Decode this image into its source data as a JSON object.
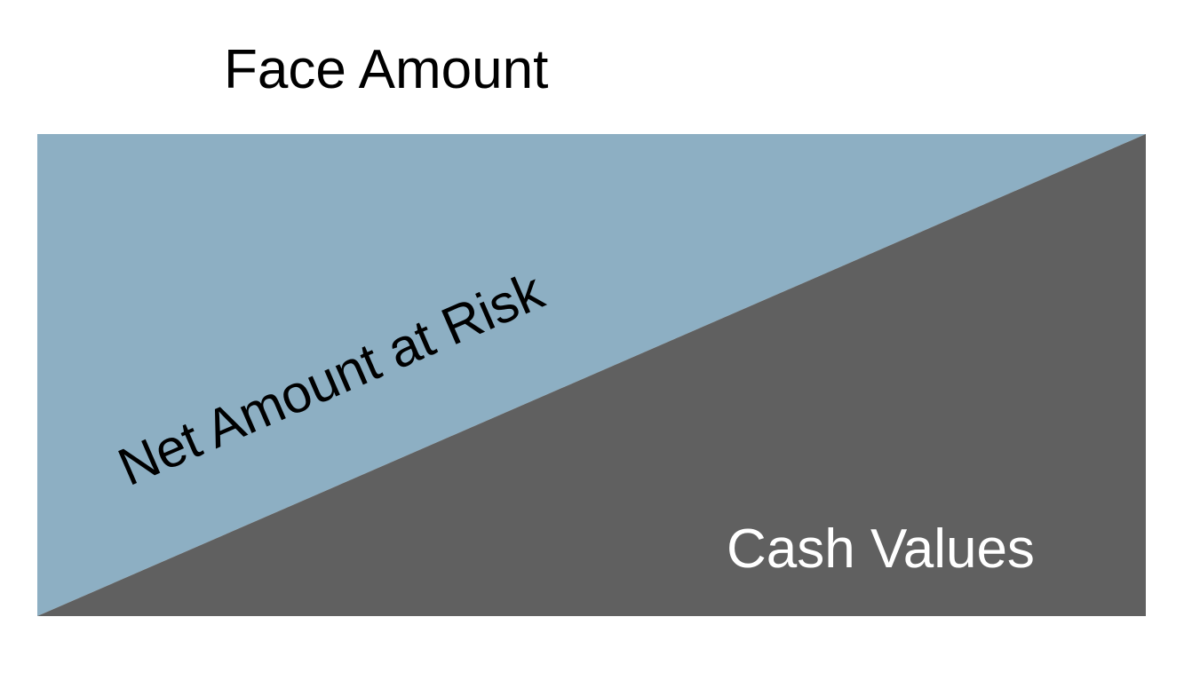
{
  "labels": {
    "face_amount": "Face Amount",
    "net_amount_at_risk": "Net Amount at Risk",
    "cash_values": "Cash Values"
  },
  "colors": {
    "net_amount_at_risk_fill": "#8DAFC3",
    "cash_values_fill": "#606060",
    "face_amount_text": "#000000",
    "net_amount_text": "#000000",
    "cash_values_text": "#FFFFFF"
  }
}
